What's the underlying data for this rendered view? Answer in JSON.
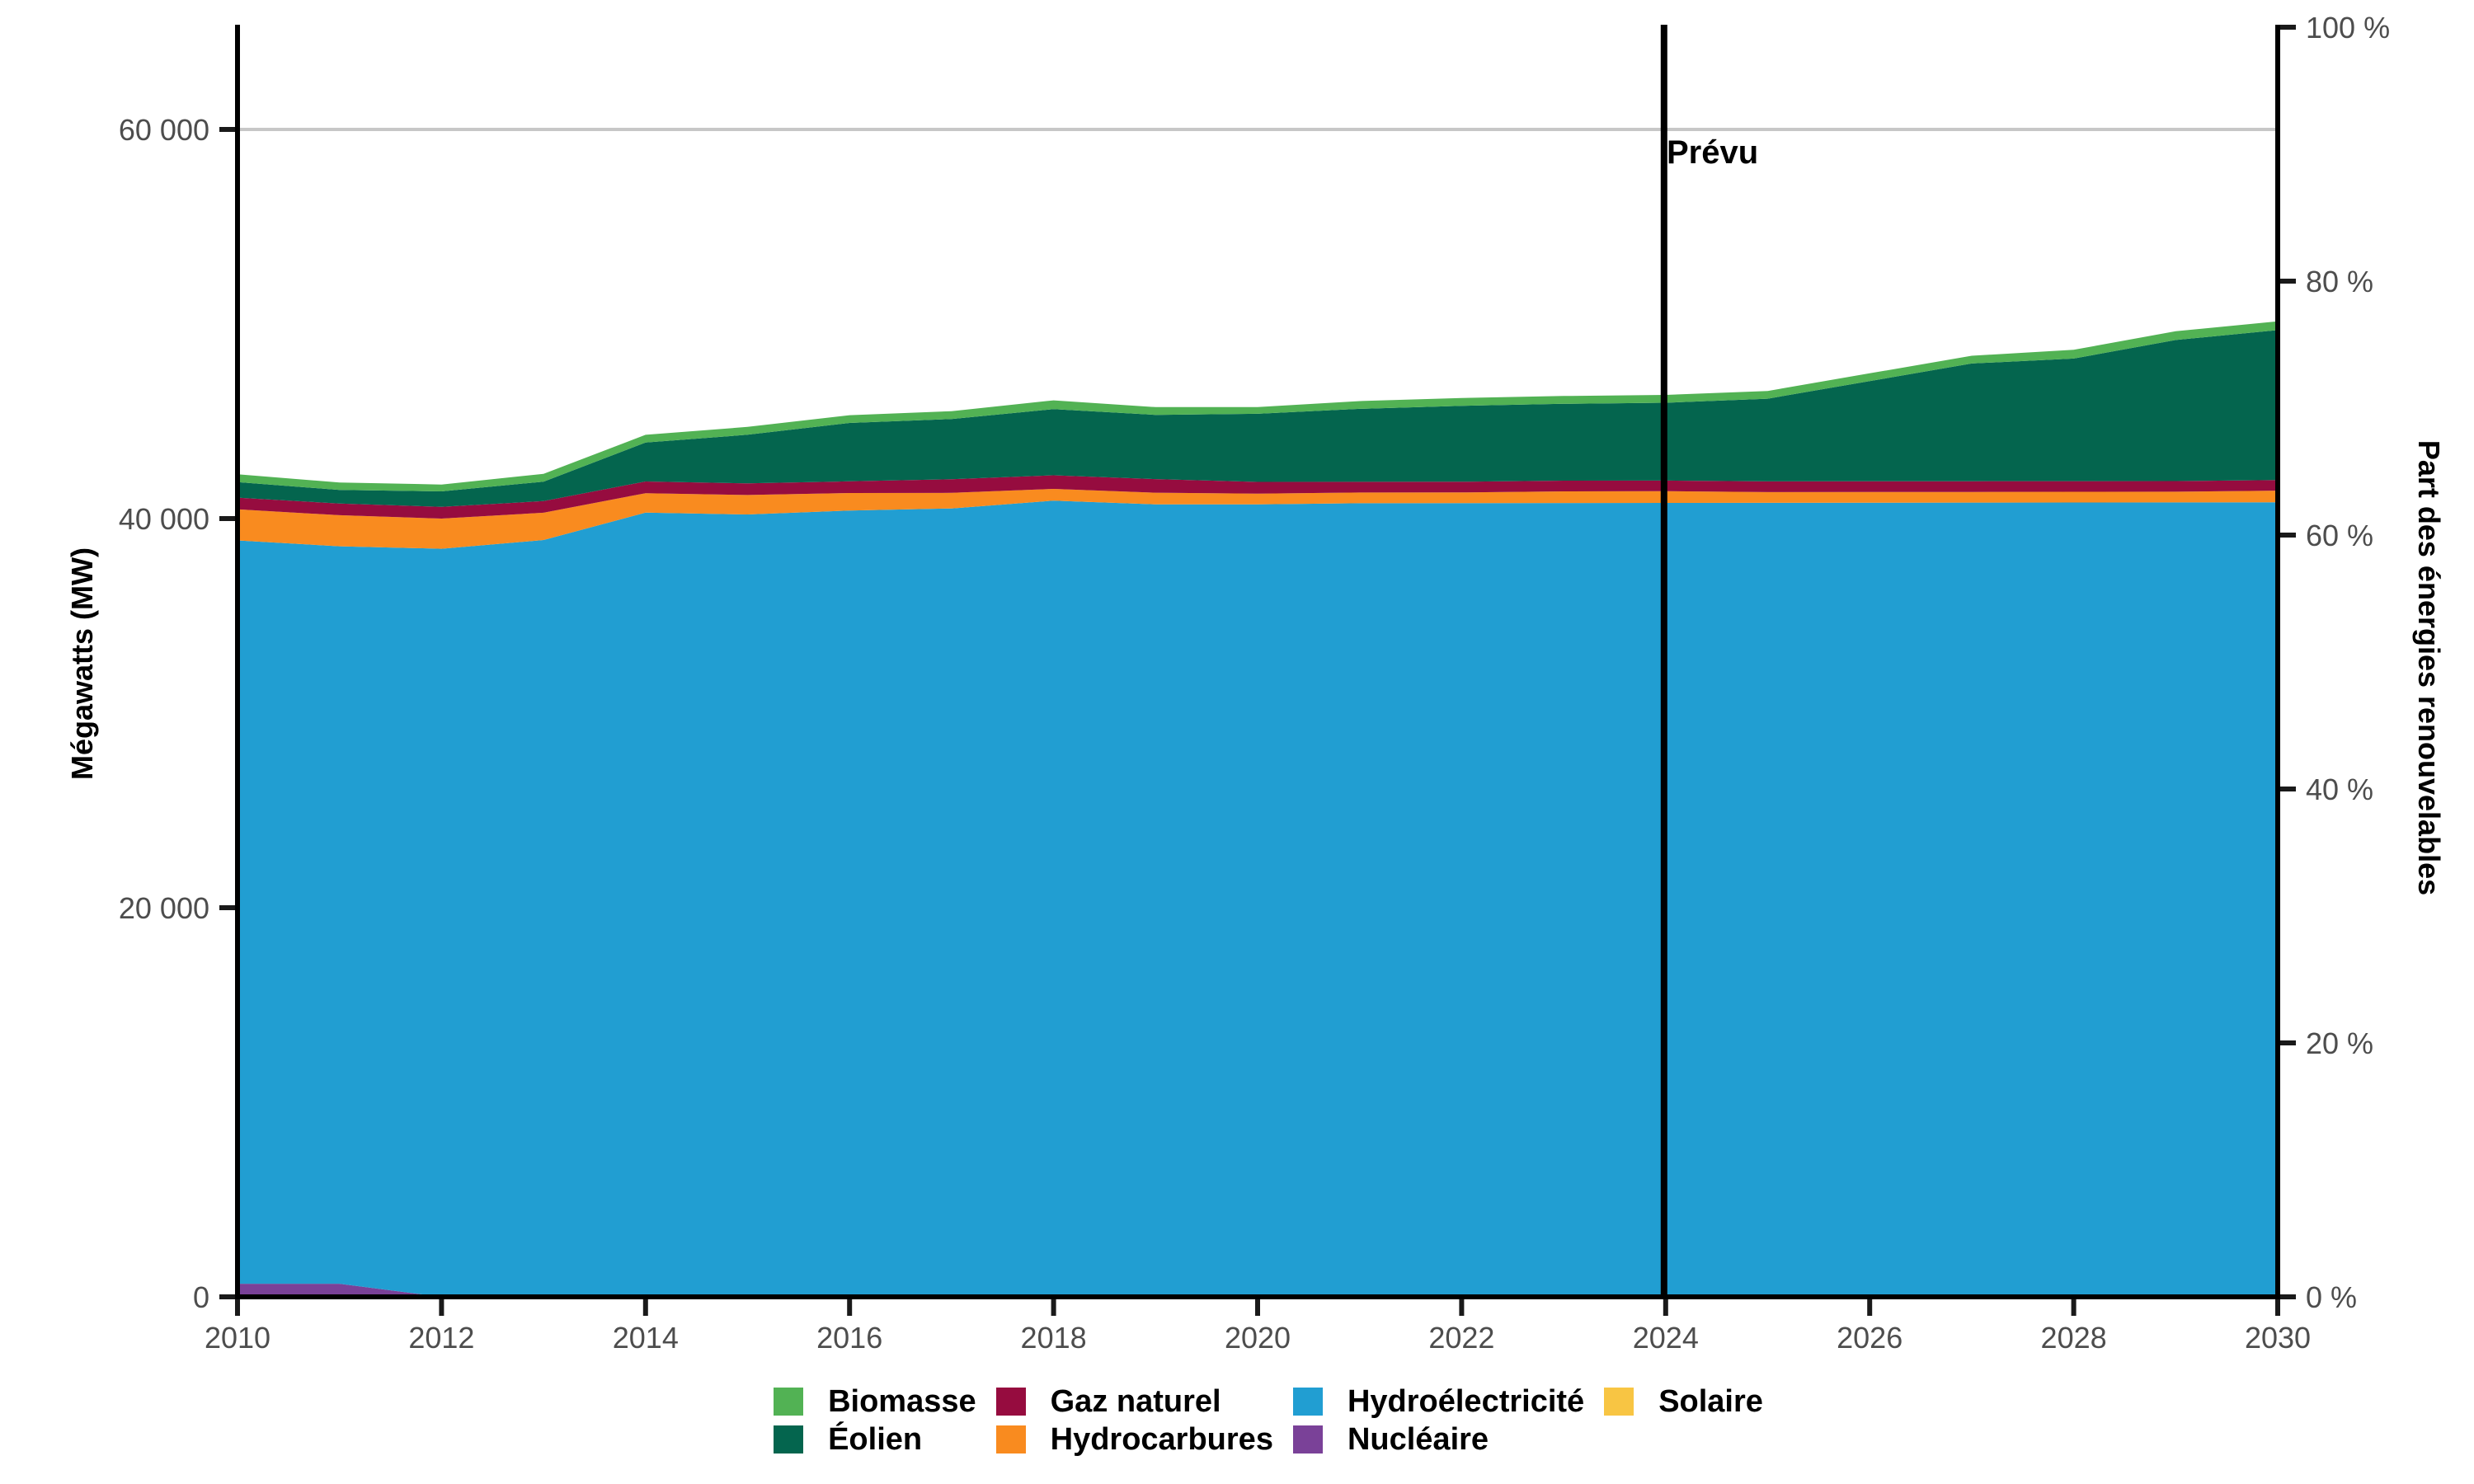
{
  "chart_data": {
    "type": "area",
    "stacked": true,
    "x": [
      2010,
      2011,
      2012,
      2013,
      2014,
      2015,
      2016,
      2017,
      2018,
      2019,
      2020,
      2021,
      2022,
      2023,
      2024,
      2025,
      2026,
      2027,
      2028,
      2029,
      2030
    ],
    "x_ticks": [
      {
        "year": 2010,
        "label": "2010"
      },
      {
        "year": 2012,
        "label": "2012"
      },
      {
        "year": 2014,
        "label": "2014"
      },
      {
        "year": 2016,
        "label": "2016"
      },
      {
        "year": 2018,
        "label": "2018"
      },
      {
        "year": 2020,
        "label": "2020"
      },
      {
        "year": 2022,
        "label": "2022"
      },
      {
        "year": 2024,
        "label": "2024"
      },
      {
        "year": 2026,
        "label": "2026"
      },
      {
        "year": 2028,
        "label": "2028"
      },
      {
        "year": 2030,
        "label": "2030"
      }
    ],
    "y_left": {
      "title": "Mégawatts (MW)",
      "unit": "MW",
      "ticks": [
        {
          "value": 0,
          "label": "0"
        },
        {
          "value": 20000,
          "label": "20 000"
        },
        {
          "value": 40000,
          "label": "40 000"
        },
        {
          "value": 60000,
          "label": "60 000"
        }
      ],
      "gridline_values": [
        60000
      ]
    },
    "y_right": {
      "title": "Part des énergies renouvelables",
      "unit": "%",
      "ticks": [
        {
          "value": 0,
          "label": "0 %"
        },
        {
          "value": 20,
          "label": "20 %"
        },
        {
          "value": 40,
          "label": "40 %"
        },
        {
          "value": 60,
          "label": "60 %"
        },
        {
          "value": 80,
          "label": "80 %"
        },
        {
          "value": 100,
          "label": "100 %"
        }
      ]
    },
    "forecast": {
      "label": "Prévu",
      "x": 2024
    },
    "series": [
      {
        "name": "Solaire",
        "color": "#f8c543",
        "values": [
          0,
          0,
          0,
          0,
          5,
          10,
          15,
          20,
          25,
          30,
          35,
          40,
          45,
          50,
          55,
          60,
          65,
          70,
          75,
          80,
          85
        ]
      },
      {
        "name": "Nucléaire",
        "color": "#7a4198",
        "values": [
          675,
          675,
          0,
          0,
          0,
          0,
          0,
          0,
          0,
          0,
          0,
          0,
          0,
          0,
          0,
          0,
          0,
          0,
          0,
          0,
          0
        ]
      },
      {
        "name": "Hydroélectricité",
        "color": "#219ed2",
        "values": [
          38200,
          37900,
          38450,
          38900,
          40300,
          40200,
          40400,
          40500,
          40900,
          40700,
          40700,
          40750,
          40750,
          40750,
          40750,
          40750,
          40750,
          40750,
          40750,
          40750,
          40750
        ]
      },
      {
        "name": "Hydrocarbures",
        "color": "#f98b1f",
        "values": [
          1600,
          1600,
          1550,
          1400,
          1000,
          1000,
          900,
          800,
          600,
          600,
          550,
          550,
          550,
          600,
          600,
          550,
          550,
          550,
          550,
          550,
          600
        ]
      },
      {
        "name": "Gaz naturel",
        "color": "#960c3f",
        "values": [
          600,
          600,
          600,
          600,
          600,
          600,
          600,
          700,
          700,
          700,
          600,
          550,
          550,
          550,
          550,
          550,
          550,
          550,
          550,
          550,
          550
        ]
      },
      {
        "name": "Éolien",
        "color": "#04654e",
        "values": [
          800,
          700,
          800,
          1000,
          2000,
          2500,
          3000,
          3100,
          3400,
          3300,
          3500,
          3750,
          3900,
          3950,
          4000,
          4250,
          5150,
          6050,
          6300,
          7250,
          7700
        ]
      },
      {
        "name": "Biomasse",
        "color": "#52b254",
        "values": [
          400,
          380,
          350,
          400,
          400,
          400,
          400,
          400,
          450,
          400,
          350,
          400,
          400,
          400,
          400,
          400,
          400,
          400,
          450,
          450,
          450
        ]
      }
    ],
    "axis_color": "#000000",
    "gridline_color": "#c7c7c7",
    "tick_text_color": "#4d4d4d"
  },
  "legend": {
    "items": [
      {
        "label": "Biomasse",
        "color": "#52b254"
      },
      {
        "label": "Éolien",
        "color": "#04654e"
      },
      {
        "label": "Gaz naturel",
        "color": "#960c3f"
      },
      {
        "label": "Hydrocarbures",
        "color": "#f98b1f"
      },
      {
        "label": "Hydroélectricité",
        "color": "#219ed2"
      },
      {
        "label": "Nucléaire",
        "color": "#7a4198"
      },
      {
        "label": "Solaire",
        "color": "#f8c543"
      }
    ]
  }
}
